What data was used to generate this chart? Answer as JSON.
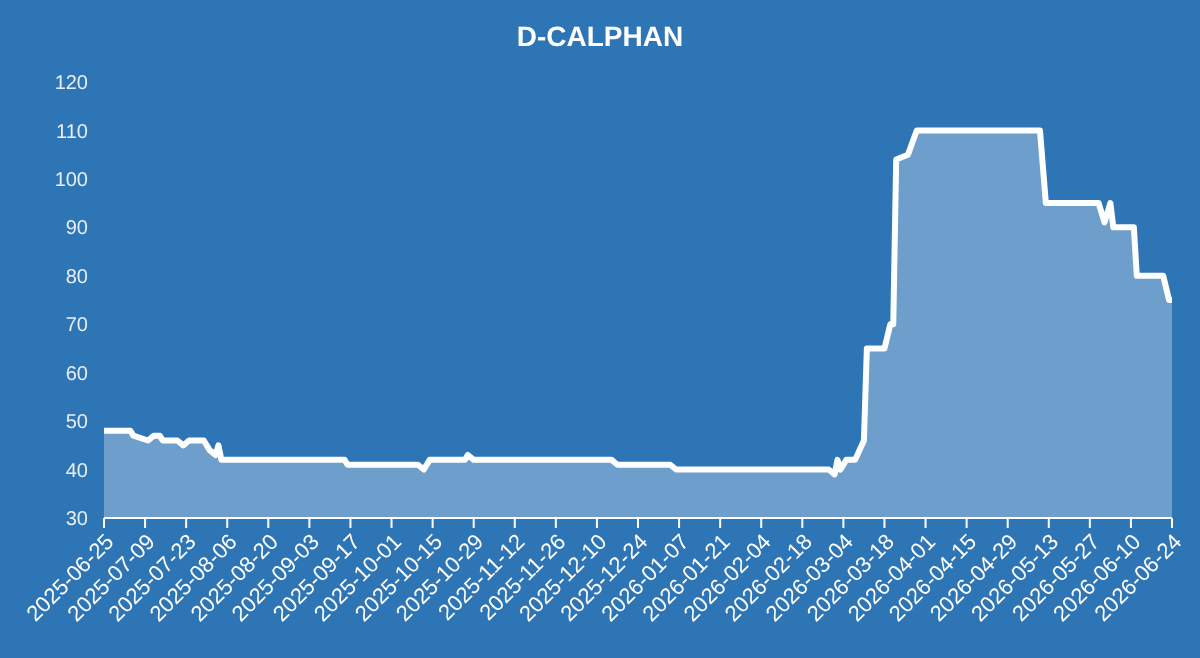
{
  "chart_data": {
    "type": "area",
    "title": "D-CALPHAN",
    "x": [
      "2025-06-25",
      "2025-07-04",
      "2025-07-05",
      "2025-07-10",
      "2025-07-12",
      "2025-07-14",
      "2025-07-15",
      "2025-07-20",
      "2025-07-22",
      "2025-07-24",
      "2025-07-29",
      "2025-07-31",
      "2025-08-02",
      "2025-08-03",
      "2025-08-04",
      "2025-09-15",
      "2025-09-16",
      "2025-10-10",
      "2025-10-12",
      "2025-10-14",
      "2025-10-26",
      "2025-10-27",
      "2025-10-29",
      "2025-12-15",
      "2025-12-17",
      "2026-01-04",
      "2026-01-06",
      "2026-02-27",
      "2026-03-01",
      "2026-03-02",
      "2026-03-03",
      "2026-03-05",
      "2026-03-08",
      "2026-03-11",
      "2026-03-12",
      "2026-03-18",
      "2026-03-20",
      "2026-03-21",
      "2026-03-22",
      "2026-03-26",
      "2026-03-29",
      "2026-05-10",
      "2026-05-12",
      "2026-05-30",
      "2026-06-01",
      "2026-06-03",
      "2026-06-04",
      "2026-06-11",
      "2026-06-12",
      "2026-06-21",
      "2026-06-23",
      "2026-06-24"
    ],
    "series": [
      {
        "color": "#ffffff",
        "values": [
          48,
          48,
          47,
          46,
          47,
          47,
          46,
          46,
          45,
          46,
          46,
          44,
          43,
          45,
          42,
          42,
          41,
          41,
          40,
          42,
          42,
          43,
          42,
          42,
          41,
          41,
          40,
          40,
          39,
          42,
          40,
          42,
          42,
          46,
          65,
          65,
          70,
          70,
          104,
          105,
          110,
          110,
          95,
          95,
          91,
          95,
          90,
          90,
          80,
          80,
          75,
          75
        ]
      }
    ],
    "xlim": [
      "2025-06-25",
      "2026-06-24"
    ],
    "xticks": [
      "2025-06-25",
      "2025-07-09",
      "2025-07-23",
      "2025-08-06",
      "2025-08-20",
      "2025-09-03",
      "2025-09-17",
      "2025-10-01",
      "2025-10-15",
      "2025-10-29",
      "2025-11-12",
      "2025-11-26",
      "2025-12-10",
      "2025-12-24",
      "2026-01-07",
      "2026-01-21",
      "2026-02-04",
      "2026-02-18",
      "2026-03-04",
      "2026-03-18",
      "2026-04-01",
      "2026-04-15",
      "2026-04-29",
      "2026-05-13",
      "2026-05-27",
      "2026-06-10",
      "2026-06-24"
    ],
    "ylim": [
      30,
      120
    ],
    "yticks": [
      30,
      40,
      50,
      60,
      70,
      80,
      90,
      100,
      110,
      120
    ],
    "grid": false,
    "legend": false
  }
}
